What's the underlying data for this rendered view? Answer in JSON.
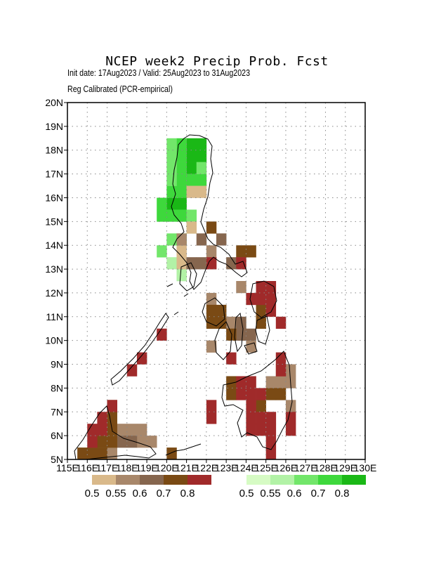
{
  "title": "NCEP week2 Precip Prob. Fcst",
  "subtitle1": "Init date: 17Aug2023 / Valid: 25Aug2023 to 31Aug2023",
  "subtitle2": "Reg Calibrated (PCR-empirical)",
  "map": {
    "lon_range": [
      115,
      130
    ],
    "lat_range": [
      5,
      20
    ],
    "cell_deg": 0.5,
    "grid_lines": true,
    "x_tick_labels": [
      "115E",
      "116E",
      "117E",
      "118E",
      "119E",
      "120E",
      "121E",
      "122E",
      "123E",
      "124E",
      "125E",
      "126E",
      "127E",
      "128E",
      "129E",
      "130E"
    ],
    "y_tick_labels": [
      "5N",
      "6N",
      "7N",
      "8N",
      "9N",
      "10N",
      "11N",
      "12N",
      "13N",
      "14N",
      "15N",
      "16N",
      "17N",
      "18N",
      "19N",
      "20N"
    ]
  },
  "legend": {
    "dry": {
      "colors": [
        "#d9b98a",
        "#a8876a",
        "#86664e",
        "#7a4a14",
        "#a02a2a"
      ],
      "labels": [
        "0.5",
        "0.55",
        "0.6",
        "0.7",
        "0.8"
      ]
    },
    "wet": {
      "colors": [
        "#d6fbc4",
        "#b2f2a6",
        "#72e66a",
        "#3ed83c",
        "#1ab816"
      ],
      "labels": [
        "0.5",
        "0.55",
        "0.6",
        "0.7",
        "0.8"
      ]
    }
  },
  "forecast_cells": {
    "#1ab816": [
      [
        121,
        18
      ],
      [
        121.5,
        18
      ],
      [
        121,
        17.5
      ],
      [
        121.5,
        17.5
      ],
      [
        121,
        17
      ],
      [
        120,
        15.5
      ],
      [
        120.5,
        15.5
      ]
    ],
    "#3ed83c": [
      [
        120.5,
        18
      ],
      [
        120.5,
        17.5
      ],
      [
        121,
        16.5
      ],
      [
        121.5,
        16.5
      ],
      [
        120.5,
        17
      ],
      [
        120.5,
        16.5
      ],
      [
        119.5,
        15.5
      ],
      [
        119.5,
        15
      ],
      [
        120,
        15
      ],
      [
        120.5,
        15
      ],
      [
        120,
        16
      ],
      [
        120.5,
        16
      ]
    ],
    "#72e66a": [
      [
        120,
        18
      ],
      [
        120,
        17.5
      ],
      [
        120,
        17
      ],
      [
        120,
        16.5
      ],
      [
        121.5,
        17
      ],
      [
        121,
        15
      ],
      [
        120,
        14
      ],
      [
        119.5,
        13.5
      ],
      [
        120.5,
        14
      ]
    ],
    "#b2f2a6": [
      [
        120,
        13
      ],
      [
        120.5,
        12.5
      ],
      [
        121,
        14.5
      ]
    ],
    "#d9b98a": [
      [
        121.5,
        16
      ],
      [
        121,
        16
      ],
      [
        121,
        14.5
      ],
      [
        120.5,
        13
      ],
      [
        120.5,
        13.5
      ]
    ],
    "#a8876a": [
      [
        120.5,
        14
      ],
      [
        122,
        13.5
      ],
      [
        122,
        13
      ],
      [
        123.5,
        13
      ],
      [
        123.5,
        12
      ],
      [
        122,
        11.5
      ],
      [
        123,
        10.5
      ],
      [
        122,
        9.5
      ],
      [
        124,
        9.5
      ],
      [
        118,
        6
      ],
      [
        118.5,
        6
      ],
      [
        117.5,
        6
      ],
      [
        118.5,
        5.5
      ],
      [
        119,
        5.5
      ],
      [
        125.5,
        8.5
      ],
      [
        126,
        8.5
      ],
      [
        126,
        8
      ],
      [
        125,
        8
      ],
      [
        125.5,
        8
      ],
      [
        126,
        7
      ],
      [
        117,
        5
      ],
      [
        123.5,
        10
      ]
    ],
    "#86664e": [
      [
        121.5,
        14
      ],
      [
        122.5,
        14
      ],
      [
        123,
        13
      ],
      [
        123.5,
        10
      ],
      [
        123.5,
        10.5
      ],
      [
        124,
        10
      ],
      [
        121,
        13
      ],
      [
        121.5,
        13
      ],
      [
        117.5,
        5.5
      ],
      [
        118,
        5.5
      ]
    ],
    "#7a4a14": [
      [
        122,
        14.5
      ],
      [
        123.5,
        13.5
      ],
      [
        124,
        13.5
      ],
      [
        122,
        11
      ],
      [
        122.5,
        11
      ],
      [
        122,
        10.5
      ],
      [
        122.5,
        10.5
      ],
      [
        123,
        10
      ],
      [
        124.5,
        11
      ],
      [
        124.5,
        10.5
      ],
      [
        125,
        7.5
      ],
      [
        125.5,
        7.5
      ],
      [
        124.5,
        7
      ],
      [
        117,
        7
      ],
      [
        117,
        6.5
      ],
      [
        117,
        6
      ],
      [
        116.5,
        5.5
      ],
      [
        117,
        5.5
      ],
      [
        115.5,
        5
      ],
      [
        116,
        5
      ],
      [
        116.5,
        5
      ],
      [
        120,
        5
      ],
      [
        123,
        8
      ],
      [
        123,
        7.5
      ]
    ],
    "#a02a2a": [
      [
        124,
        11.5
      ],
      [
        124.5,
        12
      ],
      [
        125,
        12
      ],
      [
        125,
        11.5
      ],
      [
        125,
        11
      ],
      [
        124.5,
        11.5
      ],
      [
        125.5,
        10.5
      ],
      [
        125.5,
        9
      ],
      [
        125.5,
        8.5
      ],
      [
        123,
        9
      ],
      [
        119.5,
        10
      ],
      [
        118.5,
        9
      ],
      [
        118,
        8.5
      ],
      [
        117,
        7
      ],
      [
        116.5,
        6.5
      ],
      [
        116,
        6
      ],
      [
        116.5,
        6
      ],
      [
        116,
        5.5
      ],
      [
        122,
        7
      ],
      [
        122,
        6.5
      ],
      [
        123.5,
        8
      ],
      [
        124,
        8
      ],
      [
        123.5,
        7.5
      ],
      [
        124,
        7.5
      ],
      [
        124.5,
        7.5
      ],
      [
        124,
        6.5
      ],
      [
        124.5,
        6.5
      ],
      [
        124.5,
        6
      ],
      [
        124,
        6
      ],
      [
        125,
        6.5
      ],
      [
        125,
        6
      ],
      [
        125,
        5.5
      ],
      [
        124,
        7
      ],
      [
        125,
        5
      ],
      [
        126,
        6.5
      ],
      [
        126,
        6
      ],
      [
        122,
        13
      ],
      [
        123.5,
        13
      ]
    ]
  }
}
